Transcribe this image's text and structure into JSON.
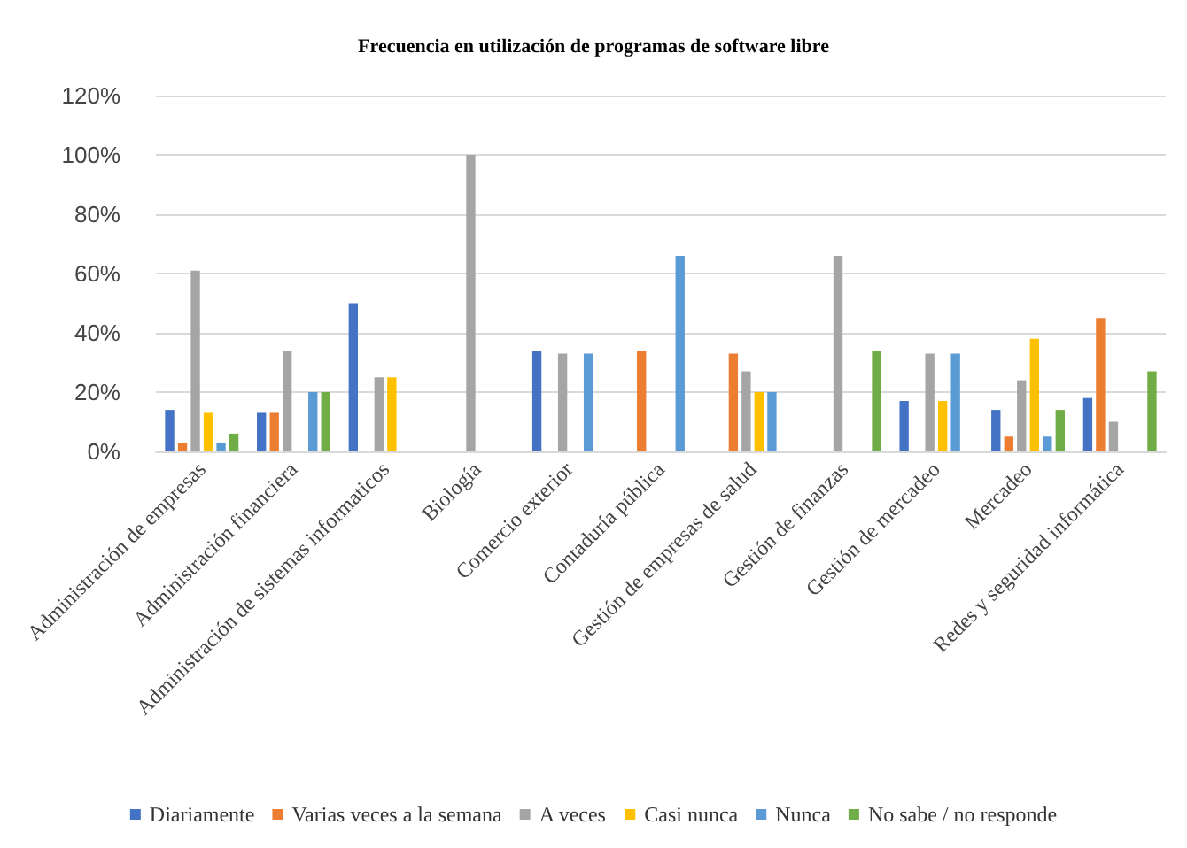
{
  "chart_data": {
    "type": "bar",
    "title": "Frecuencia en utilización de programas de software libre",
    "categories": [
      "Administración de empresas",
      "Administración financiera",
      "Administración de sistemas informaticos",
      "Biología",
      "Comercio exterior",
      "Contaduría pública",
      "Gestión de empresas de salud",
      "Gestión de finanzas",
      "Gestión de mercadeo",
      "Mercadeo",
      "Redes y seguridad informática"
    ],
    "series": [
      {
        "name": "Diariamente",
        "color": "#4472c4",
        "values": [
          14,
          13,
          50,
          null,
          34,
          null,
          null,
          null,
          17,
          14,
          18
        ]
      },
      {
        "name": "Varias veces a la semana",
        "color": "#ed7d31",
        "values": [
          3,
          13,
          null,
          null,
          null,
          34,
          33,
          null,
          null,
          5,
          45
        ]
      },
      {
        "name": "A veces",
        "color": "#a5a5a5",
        "values": [
          61,
          34,
          25,
          100,
          33,
          null,
          27,
          66,
          33,
          24,
          10
        ]
      },
      {
        "name": "Casi nunca",
        "color": "#ffc000",
        "values": [
          13,
          null,
          25,
          null,
          null,
          null,
          20,
          null,
          17,
          38,
          null
        ]
      },
      {
        "name": "Nunca",
        "color": "#5b9bd5",
        "values": [
          3,
          20,
          null,
          null,
          33,
          66,
          20,
          null,
          33,
          5,
          null
        ]
      },
      {
        "name": "No sabe / no responde",
        "color": "#70ad47",
        "values": [
          6,
          20,
          null,
          null,
          null,
          null,
          null,
          34,
          null,
          14,
          27
        ]
      }
    ],
    "ylim": [
      0,
      120
    ],
    "yticks": [
      {
        "value": 0,
        "label": "0%"
      },
      {
        "value": 20,
        "label": "20%"
      },
      {
        "value": 40,
        "label": "40%"
      },
      {
        "value": 60,
        "label": "60%"
      },
      {
        "value": 80,
        "label": "80%"
      },
      {
        "value": 100,
        "label": "100%"
      },
      {
        "value": 120,
        "label": "120%"
      }
    ],
    "grid": "y",
    "legend": "bottom"
  }
}
